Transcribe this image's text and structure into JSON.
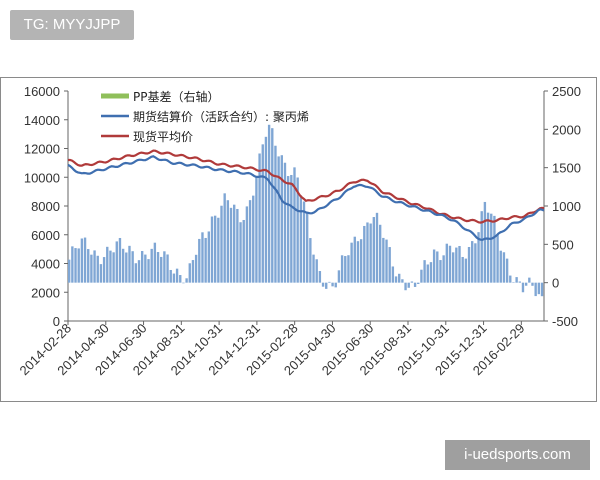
{
  "tag_text": "TG: MYYJJPP",
  "watermark_text": "i-uedsports.com",
  "colors": {
    "basis": "#7fa6d4",
    "basis_legend": "#8fbf5a",
    "futures": "#3f6fb0",
    "spot": "#b03a3a",
    "axis": "#666666",
    "text": "#333333"
  },
  "chart_data": {
    "type": "line",
    "x_labels": [
      "2014-02-28",
      "2014-04-30",
      "2014-06-30",
      "2014-08-31",
      "2014-10-31",
      "2014-12-31",
      "2015-02-28",
      "2015-04-30",
      "2015-06-30",
      "2015-08-31",
      "2015-10-31",
      "2015-12-31",
      "2016-02-29"
    ],
    "left_axis": {
      "ticks": [
        0,
        2000,
        4000,
        6000,
        8000,
        10000,
        12000,
        14000,
        16000
      ],
      "ylim": [
        0,
        16000
      ]
    },
    "right_axis": {
      "ticks": [
        -500,
        0,
        500,
        1000,
        1500,
        2000,
        2500
      ],
      "ylim": [
        -500,
        2500
      ]
    },
    "legend": [
      "PP基差（右轴）",
      "期货结算价（活跃合约）: 聚丙烯",
      "现货平均价"
    ],
    "series": [
      {
        "name": "现货平均价",
        "axis": "left",
        "x": [
          0,
          0.03,
          0.08,
          0.13,
          0.18,
          0.22,
          0.27,
          0.32,
          0.37,
          0.42,
          0.45,
          0.47,
          0.5,
          0.52,
          0.55,
          0.57,
          0.6,
          0.63,
          0.66,
          0.69,
          0.72,
          0.75,
          0.78,
          0.81,
          0.84,
          0.87,
          0.9,
          0.93,
          0.96,
          0.99
        ],
        "values": [
          11200,
          10800,
          11100,
          11500,
          11800,
          11600,
          11300,
          10900,
          10700,
          10400,
          9800,
          9500,
          8300,
          8500,
          8800,
          9100,
          9700,
          9800,
          9000,
          8600,
          8200,
          7900,
          7500,
          7200,
          7000,
          6900,
          7000,
          7200,
          7300,
          7800
        ]
      },
      {
        "name": "期货结算价（活跃合约）: 聚丙烯",
        "axis": "left",
        "x": [
          0,
          0.03,
          0.08,
          0.13,
          0.18,
          0.22,
          0.27,
          0.32,
          0.37,
          0.42,
          0.45,
          0.47,
          0.5,
          0.52,
          0.55,
          0.57,
          0.6,
          0.63,
          0.66,
          0.69,
          0.72,
          0.75,
          0.78,
          0.81,
          0.84,
          0.87,
          0.9,
          0.93,
          0.96,
          0.99
        ],
        "values": [
          10800,
          10200,
          10600,
          11000,
          11400,
          11000,
          10800,
          10500,
          10300,
          9900,
          8400,
          7900,
          7500,
          7600,
          8200,
          8600,
          9400,
          9400,
          8700,
          8300,
          8000,
          7700,
          7400,
          7000,
          6300,
          5600,
          5900,
          6700,
          7100,
          7700
        ]
      }
    ],
    "basis_series": {
      "name": "PP基差（右轴）",
      "axis": "right",
      "type": "bar",
      "anchors_x": [
        0,
        0.04,
        0.09,
        0.13,
        0.17,
        0.21,
        0.25,
        0.28,
        0.3,
        0.33,
        0.36,
        0.38,
        0.4,
        0.42,
        0.45,
        0.48,
        0.51,
        0.53,
        0.56,
        0.58,
        0.61,
        0.64,
        0.67,
        0.7,
        0.73,
        0.77,
        0.8,
        0.83,
        0.86,
        0.88,
        0.91,
        0.93,
        0.96,
        1.0
      ],
      "anchors_v": [
        300,
        500,
        350,
        500,
        300,
        400,
        -50,
        600,
        900,
        1000,
        850,
        1100,
        1500,
        1950,
        1700,
        1400,
        550,
        200,
        -100,
        200,
        700,
        850,
        500,
        150,
        -200,
        500,
        400,
        300,
        700,
        1000,
        500,
        300,
        -100,
        -200
      ]
    }
  }
}
